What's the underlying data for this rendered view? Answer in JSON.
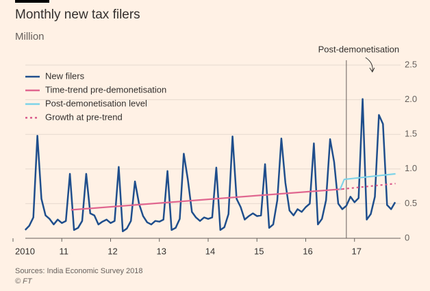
{
  "chart_data": {
    "type": "line",
    "title": "Monthly new tax filers",
    "subtitle": "Million",
    "source": "Sources: India Economic Survey 2018",
    "credit": "© FT",
    "xlim": [
      2010,
      2018
    ],
    "xticks": [
      {
        "value": 2010,
        "label": "2010"
      },
      {
        "value": 2011,
        "label": "11"
      },
      {
        "value": 2012,
        "label": "12"
      },
      {
        "value": 2013,
        "label": "13"
      },
      {
        "value": 2014,
        "label": "14"
      },
      {
        "value": 2015,
        "label": "15"
      },
      {
        "value": 2016,
        "label": "16"
      },
      {
        "value": 2017,
        "label": "17"
      }
    ],
    "ylim": [
      0,
      2.5
    ],
    "yticks": [
      0,
      0.5,
      {
        "value": 1,
        "label": "1.0"
      },
      1.5,
      {
        "value": 2,
        "label": "2.0"
      },
      2.5
    ],
    "grid": true,
    "legend": "top-left",
    "annotation": {
      "text": "Post-demonetisation",
      "x": 2016.833
    },
    "series": [
      {
        "name": "New filers",
        "color": "#1f4e8c",
        "dashed": false,
        "x": [
          2010.25,
          2010.333,
          2010.417,
          2010.5,
          2010.583,
          2010.667,
          2010.75,
          2010.833,
          2010.917,
          2011,
          2011.083,
          2011.167,
          2011.25,
          2011.333,
          2011.417,
          2011.5,
          2011.583,
          2011.667,
          2011.75,
          2011.833,
          2011.917,
          2012,
          2012.083,
          2012.167,
          2012.25,
          2012.333,
          2012.417,
          2012.5,
          2012.583,
          2012.667,
          2012.75,
          2012.833,
          2012.917,
          2013,
          2013.083,
          2013.167,
          2013.25,
          2013.333,
          2013.417,
          2013.5,
          2013.583,
          2013.667,
          2013.75,
          2013.833,
          2013.917,
          2014,
          2014.083,
          2014.167,
          2014.25,
          2014.333,
          2014.417,
          2014.5,
          2014.583,
          2014.667,
          2014.75,
          2014.833,
          2014.917,
          2015,
          2015.083,
          2015.167,
          2015.25,
          2015.333,
          2015.417,
          2015.5,
          2015.583,
          2015.667,
          2015.75,
          2015.833,
          2015.917,
          2016,
          2016.083,
          2016.167,
          2016.25,
          2016.333,
          2016.417,
          2016.5,
          2016.583,
          2016.667,
          2016.75,
          2016.833,
          2016.917,
          2017,
          2017.083,
          2017.167,
          2017.25,
          2017.333,
          2017.417,
          2017.5,
          2017.583,
          2017.667,
          2017.75,
          2017.833
        ],
        "values": [
          0.12,
          0.18,
          0.3,
          1.48,
          0.57,
          0.33,
          0.28,
          0.2,
          0.27,
          0.22,
          0.25,
          0.93,
          0.12,
          0.15,
          0.25,
          0.93,
          0.36,
          0.33,
          0.2,
          0.24,
          0.27,
          0.22,
          0.25,
          1.03,
          0.1,
          0.14,
          0.25,
          0.82,
          0.5,
          0.32,
          0.23,
          0.2,
          0.25,
          0.24,
          0.27,
          0.97,
          0.12,
          0.15,
          0.28,
          1.22,
          0.85,
          0.38,
          0.3,
          0.25,
          0.3,
          0.28,
          0.3,
          1.02,
          0.12,
          0.16,
          0.35,
          1.47,
          0.57,
          0.45,
          0.27,
          0.32,
          0.36,
          0.32,
          0.33,
          1.07,
          0.15,
          0.2,
          0.55,
          1.44,
          0.8,
          0.4,
          0.33,
          0.42,
          0.38,
          0.45,
          0.5,
          1.37,
          0.2,
          0.28,
          0.55,
          1.43,
          1.1,
          0.5,
          0.42,
          0.47,
          0.6,
          0.52,
          0.58,
          2.01,
          0.27,
          0.35,
          0.6,
          1.78,
          1.65,
          0.48,
          0.42,
          0.52
        ]
      },
      {
        "name": "Time-trend pre-demonetisation",
        "color": "#e0668f",
        "dashed": false,
        "x": [
          2011.19,
          2016.75
        ],
        "values": [
          0.41,
          0.71
        ]
      },
      {
        "name": "Post-demonetisation level",
        "color": "#7dd3e8",
        "dashed": false,
        "x": [
          2016.7,
          2016.79,
          2017.84
        ],
        "values": [
          0.7,
          0.85,
          0.93
        ]
      },
      {
        "name": "Growth at pre-trend",
        "color": "#d9588a",
        "dashed": true,
        "x": [
          2016.75,
          2017.84
        ],
        "values": [
          0.71,
          0.79
        ]
      }
    ]
  }
}
